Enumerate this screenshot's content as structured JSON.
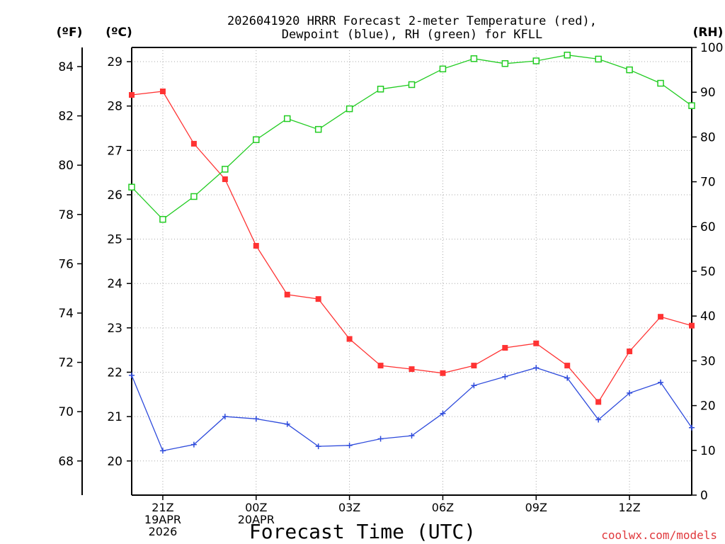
{
  "chart_data": {
    "type": "line",
    "title_lines": [
      "2026041920 HRRR Forecast 2-meter Temperature (red),",
      "Dewpoint (blue), RH (green) for KFLL"
    ],
    "xlabel": "Forecast Time (UTC)",
    "credit": "coolwx.com/models",
    "units": {
      "fahrenheit": "(ºF)",
      "celsius": "(ºC)",
      "rh": "(RH)"
    },
    "x_hours": [
      20,
      21,
      22,
      23,
      24,
      25,
      26,
      27,
      28,
      29,
      30,
      31,
      32,
      33,
      34,
      35,
      36,
      37,
      38
    ],
    "x_range": [
      20,
      38
    ],
    "x_ticks": [
      {
        "hour": 21,
        "lines": [
          "21Z",
          "19APR",
          "2026"
        ]
      },
      {
        "hour": 24,
        "lines": [
          "00Z",
          "20APR"
        ]
      },
      {
        "hour": 27,
        "lines": [
          "03Z"
        ]
      },
      {
        "hour": 30,
        "lines": [
          "06Z"
        ]
      },
      {
        "hour": 33,
        "lines": [
          "09Z"
        ]
      },
      {
        "hour": 36,
        "lines": [
          "12Z"
        ]
      }
    ],
    "celsius_range": [
      19.23,
      29.32
    ],
    "celsius_ticks": [
      20,
      21,
      22,
      23,
      24,
      25,
      26,
      27,
      28,
      29
    ],
    "fahrenheit_ticks": [
      68,
      70,
      72,
      74,
      76,
      78,
      80,
      82,
      84
    ],
    "rh_range": [
      0,
      100
    ],
    "rh_ticks": [
      0,
      10,
      20,
      30,
      40,
      50,
      60,
      70,
      80,
      90,
      100
    ],
    "series": [
      {
        "name": "Temperature",
        "axis": "celsius",
        "color": "#ff3333",
        "marker": "filled-square",
        "values": [
          28.25,
          28.33,
          27.15,
          26.35,
          24.85,
          23.75,
          23.65,
          22.75,
          22.15,
          22.07,
          21.98,
          22.15,
          22.55,
          22.65,
          22.15,
          21.33,
          22.47,
          23.25,
          23.05
        ]
      },
      {
        "name": "Dewpoint",
        "axis": "celsius",
        "color": "#2e4bdc",
        "marker": "plus",
        "values": [
          21.93,
          20.23,
          20.37,
          21.0,
          20.95,
          20.83,
          20.33,
          20.35,
          20.5,
          20.57,
          21.07,
          21.7,
          21.9,
          22.1,
          21.87,
          20.93,
          21.53,
          21.77,
          20.75
        ]
      },
      {
        "name": "RH",
        "axis": "rh",
        "color": "#22cc22",
        "marker": "hollow-square",
        "values": [
          68.8,
          61.6,
          66.7,
          72.8,
          79.4,
          84.1,
          81.7,
          86.3,
          90.7,
          91.7,
          95.2,
          97.5,
          96.4,
          97.0,
          98.3,
          97.4,
          95.0,
          92.0,
          87.0
        ]
      }
    ]
  }
}
